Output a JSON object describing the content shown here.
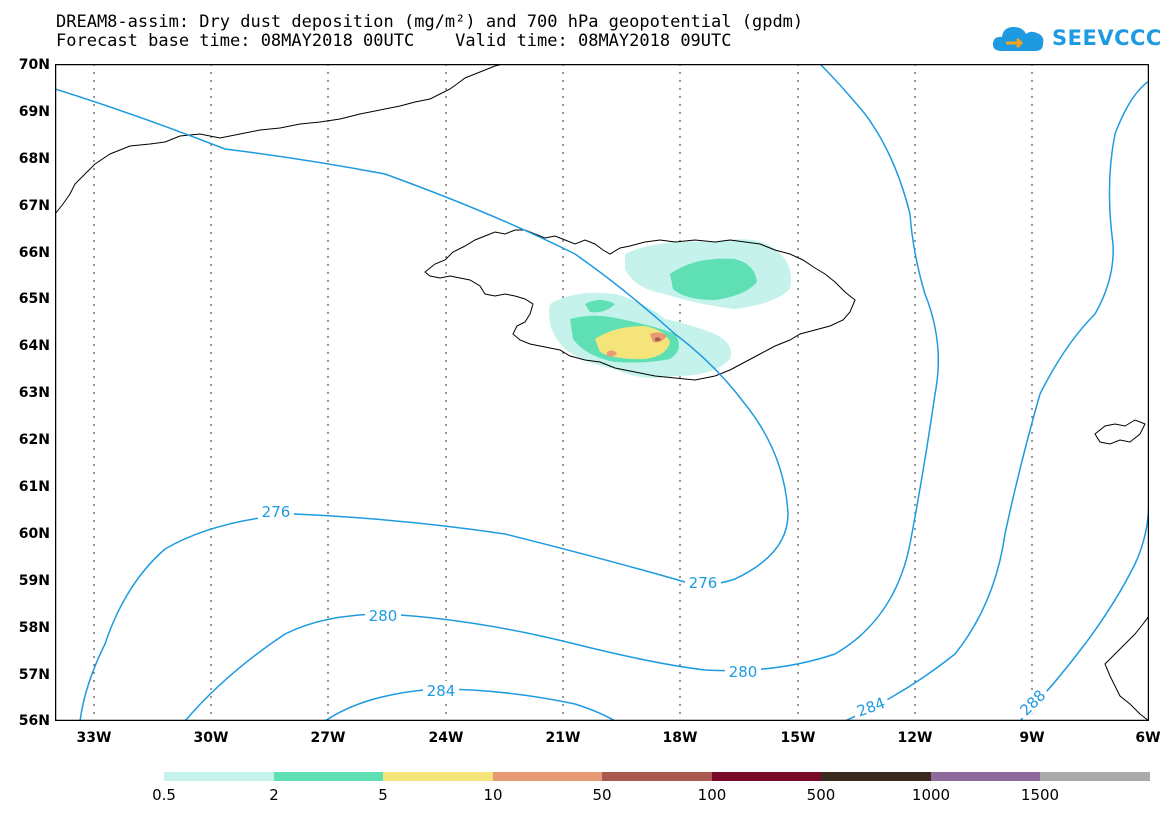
{
  "title": {
    "line1": "DREAM8-assim: Dry dust deposition (mg/m²) and 700 hPa geopotential (gpdm)",
    "line2": "Forecast base time: 08MAY2018 00UTC    Valid time: 08MAY2018 09UTC"
  },
  "logo": {
    "text": "SEEVCCC",
    "icon": "cloud-icon"
  },
  "axes": {
    "lat_labels": [
      "70N",
      "69N",
      "68N",
      "67N",
      "66N",
      "65N",
      "64N",
      "63N",
      "62N",
      "61N",
      "60N",
      "59N",
      "58N",
      "57N",
      "56N"
    ],
    "lon_labels": [
      "33W",
      "30W",
      "27W",
      "24W",
      "21W",
      "18W",
      "15W",
      "12W",
      "9W",
      "6W"
    ]
  },
  "contours": {
    "color": "#1e9be0",
    "labels": [
      "276",
      "276",
      "280",
      "280",
      "284",
      "284",
      "288"
    ]
  },
  "colorbar": {
    "labels": [
      "0.5",
      "2",
      "5",
      "10",
      "50",
      "100",
      "500",
      "1000",
      "1500"
    ],
    "colors": [
      "#c6f2ec",
      "#5fe0b4",
      "#f4e47a",
      "#e89a74",
      "#a85a4f",
      "#7a0a2a",
      "#3a2a1e",
      "#8e6a9a",
      "#aaaaaa"
    ]
  }
}
